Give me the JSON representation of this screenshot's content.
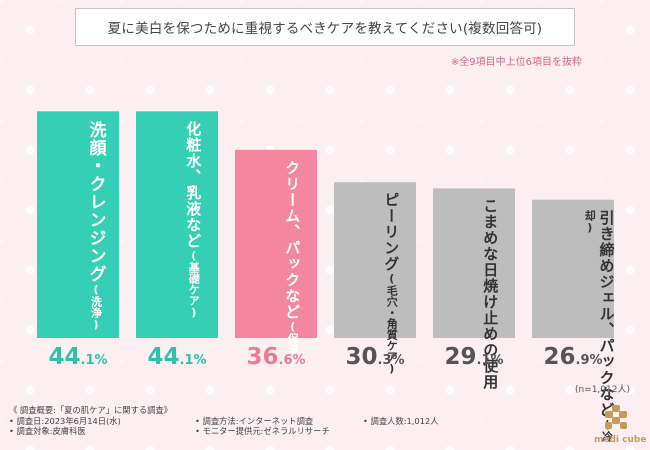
{
  "title": "夏に美白を保つために重視するべきケアを教えてください(複数回答可)",
  "note": "※全9項目中上位6項目を抜粋",
  "sample_size": "(n=1,012人)",
  "colors": {
    "teal": "#35cfb6",
    "pink": "#f4879f",
    "gray": "#bdbdbd",
    "teal_text": "#2fc1aa",
    "pink_text": "#ef7893",
    "gray_text": "#555555"
  },
  "chart_data": {
    "type": "bar",
    "ylim": [
      0,
      50
    ],
    "categories": [
      {
        "label": "洗顔・クレンジング",
        "sub": "(洗浄)",
        "color": "teal",
        "value": 44.1
      },
      {
        "label": "化粧水、乳液など",
        "sub": "(基礎ケア)",
        "color": "teal",
        "value": 44.1
      },
      {
        "label": "クリーム、パックなど",
        "sub": "(保湿)",
        "color": "pink",
        "value": 36.6
      },
      {
        "label": "ピーリング",
        "sub": "(毛穴・角質ケア)",
        "color": "gray",
        "value": 30.3
      },
      {
        "label": "こまめな日焼け止めの使用",
        "sub": "",
        "color": "gray",
        "value": 29.1
      },
      {
        "label": "引き締めジェル、パックなど",
        "sub": "(冷却)",
        "color": "gray",
        "value": 26.9
      }
    ],
    "value_unit": "%"
  },
  "footer": {
    "heading": "《 調査概要:「夏の肌ケア」に関する調査》",
    "date": "• 調査日:2023年6月14日(水)",
    "method": "• 調査方法:インターネット調査",
    "people": "• 調査人数:1,012人",
    "target": "• 調査対象:皮膚科医",
    "monitor": "• モニター提供元:ゼネラルリサーチ"
  },
  "logo": {
    "text": "medi cube",
    "icon": "medicube-logo-icon"
  }
}
